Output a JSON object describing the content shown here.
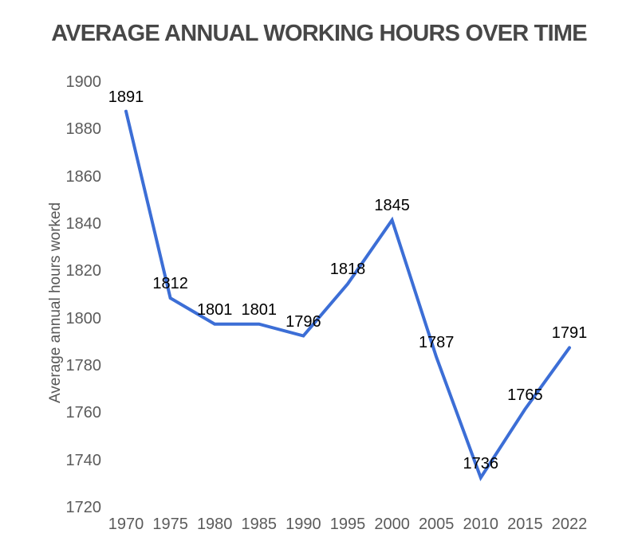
{
  "chart_data": {
    "type": "line",
    "title": "AVERAGE ANNUAL WORKING HOURS OVER TIME",
    "xlabel": "",
    "ylabel": "Average annual hours worked",
    "categories": [
      "1970",
      "1975",
      "1980",
      "1985",
      "1990",
      "1995",
      "2000",
      "2005",
      "2010",
      "2015",
      "2022"
    ],
    "values": [
      1891,
      1812,
      1801,
      1801,
      1796,
      1818,
      1845,
      1787,
      1736,
      1765,
      1791
    ],
    "data_labels": [
      "1891",
      "1812",
      "1801",
      "1801",
      "1796",
      "1818",
      "1845",
      "1787",
      "1736",
      "1765",
      "1791"
    ],
    "y_ticks": [
      1900,
      1880,
      1860,
      1840,
      1820,
      1800,
      1780,
      1760,
      1740,
      1720
    ],
    "ylim": [
      1720,
      1900
    ],
    "grid": false,
    "legend_position": "none",
    "axis_lines": false,
    "line_color": "#3c6ed6",
    "line_width": 4,
    "title_color": "#474747",
    "axis_text_color": "#5b5b5b",
    "data_label_color": "#000000",
    "background_color": "#ffffff"
  }
}
